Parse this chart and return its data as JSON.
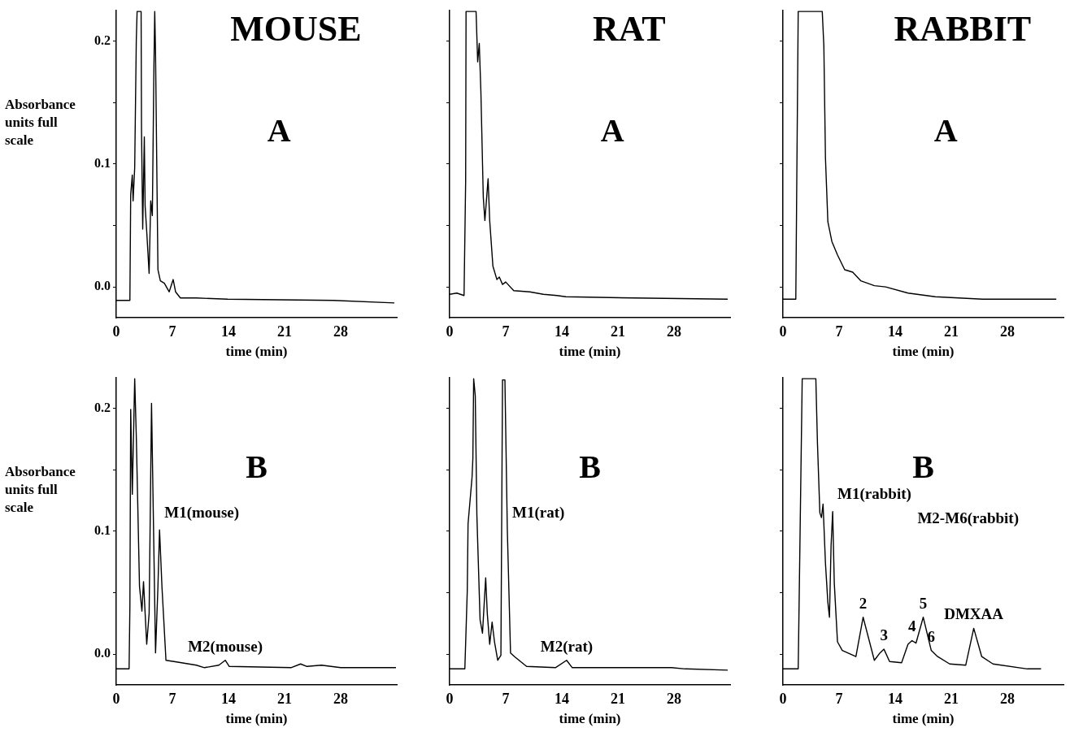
{
  "chart_data": [
    {
      "type": "line",
      "title": "MOUSE",
      "xlabel": "time (min)",
      "ylabel": "Absorbance units full scale",
      "xlim": [
        0,
        35
      ],
      "xticks": [
        0,
        7,
        14,
        21,
        28
      ],
      "ylim": [
        -0.025,
        0.225
      ],
      "yticks": [
        {
          "value": 0,
          "label": "0.0"
        },
        {
          "value": 0.05,
          "label": null
        },
        {
          "value": 0.1,
          "label": "0.1"
        },
        {
          "value": 0.15,
          "label": null
        },
        {
          "value": 0.2,
          "label": "0.2"
        }
      ],
      "annotations": [
        "A"
      ],
      "series": [
        {
          "color": "#000000",
          "x": [
            0,
            1.7,
            1.8,
            2.0,
            2.1,
            2.3,
            2.5,
            2.6,
            3.1,
            3.15,
            3.3,
            3.5,
            3.6,
            3.8,
            4.1,
            4.3,
            4.5,
            4.7,
            4.8,
            4.9,
            5.2,
            5.5,
            6.0,
            6.6,
            7.1,
            7.4,
            8.0,
            10.0,
            13.9,
            27.1,
            34.7
          ],
          "values": [
            -0.011,
            -0.011,
            0.075,
            0.091,
            0.07,
            0.097,
            0.201,
            0.224,
            0.224,
            0.128,
            0.047,
            0.122,
            0.066,
            0.045,
            0.011,
            0.07,
            0.058,
            0.18,
            0.224,
            0.19,
            0.014,
            0.005,
            0.003,
            -0.004,
            0.006,
            -0.004,
            -0.009,
            -0.009,
            -0.01,
            -0.011,
            -0.013
          ]
        }
      ]
    },
    {
      "type": "line",
      "title": "RAT",
      "xlabel": "time (min)",
      "xlim": [
        0,
        35
      ],
      "xticks": [
        0,
        7,
        14,
        21,
        28
      ],
      "ylim": [
        -0.025,
        0.225
      ],
      "yticks": [
        {
          "value": 0,
          "label": null
        },
        {
          "value": 0.05,
          "label": null
        },
        {
          "value": 0.1,
          "label": null
        },
        {
          "value": 0.15,
          "label": null
        },
        {
          "value": 0.2,
          "label": null
        }
      ],
      "tick_labels": "x",
      "annotations": [
        "A"
      ],
      "series": [
        {
          "color": "#000000",
          "x": [
            0,
            0.9,
            1.8,
            2.0,
            2.05,
            3.3,
            3.5,
            3.7,
            3.9,
            4.2,
            4.4,
            4.8,
            5.0,
            5.4,
            5.9,
            6.2,
            6.6,
            7.0,
            8.0,
            10.0,
            11.7,
            13.4,
            14.5,
            23.0,
            34.7
          ],
          "values": [
            -0.006,
            -0.005,
            -0.007,
            0.086,
            0.224,
            0.224,
            0.183,
            0.198,
            0.159,
            0.073,
            0.054,
            0.088,
            0.054,
            0.017,
            0.006,
            0.008,
            0.002,
            0.004,
            -0.003,
            -0.004,
            -0.006,
            -0.007,
            -0.008,
            -0.009,
            -0.01
          ]
        }
      ]
    },
    {
      "type": "line",
      "title": "RABBIT",
      "xlabel": "time (min)",
      "xlim": [
        0,
        35
      ],
      "xticks": [
        0,
        7,
        14,
        21,
        28
      ],
      "ylim": [
        -0.025,
        0.225
      ],
      "yticks": [
        {
          "value": 0,
          "label": null
        },
        {
          "value": 0.05,
          "label": null
        },
        {
          "value": 0.1,
          "label": null
        },
        {
          "value": 0.15,
          "label": null
        },
        {
          "value": 0.2,
          "label": null
        }
      ],
      "tick_labels": "x",
      "annotations": [
        "A"
      ],
      "series": [
        {
          "color": "#000000",
          "x": [
            0,
            1.6,
            1.9,
            4.9,
            5.1,
            5.3,
            5.6,
            6.1,
            6.8,
            7.7,
            8.7,
            9.7,
            11.4,
            12.8,
            15.6,
            19.0,
            24.9,
            34.1
          ],
          "values": [
            -0.01,
            -0.01,
            0.224,
            0.224,
            0.196,
            0.105,
            0.053,
            0.037,
            0.026,
            0.014,
            0.012,
            0.005,
            0.001,
            0,
            -0.005,
            -0.008,
            -0.01,
            -0.01
          ]
        }
      ]
    },
    {
      "type": "line",
      "xlabel": "time (min)",
      "ylabel": "Absorbance units full scale",
      "xlim": [
        0,
        35
      ],
      "xticks": [
        0,
        7,
        14,
        21,
        28
      ],
      "ylim": [
        -0.025,
        0.225
      ],
      "yticks": [
        {
          "value": 0,
          "label": "0.0"
        },
        {
          "value": 0.05,
          "label": null
        },
        {
          "value": 0.1,
          "label": "0.1"
        },
        {
          "value": 0.15,
          "label": null
        },
        {
          "value": 0.2,
          "label": "0.2"
        }
      ],
      "annotations": [
        "B",
        {
          "text": "M1(mouse)",
          "x": 5.4,
          "y": 0.101
        },
        {
          "text": "M2(mouse)",
          "x": 13.6,
          "y": -0.005
        }
      ],
      "series": [
        {
          "color": "#000000",
          "x": [
            0,
            1.6,
            1.7,
            1.8,
            2.0,
            2.3,
            2.5,
            2.9,
            3.2,
            3.4,
            3.8,
            4.1,
            4.4,
            4.9,
            5.2,
            5.4,
            5.7,
            6.2,
            7.2,
            10.0,
            11.0,
            12.8,
            13.6,
            14.1,
            21.8,
            23.0,
            23.8,
            25.6,
            28.0,
            34.9
          ],
          "values": [
            -0.012,
            -0.012,
            0.039,
            0.199,
            0.13,
            0.224,
            0.177,
            0.055,
            0.035,
            0.059,
            0.008,
            0.033,
            0.204,
            0.001,
            0.055,
            0.101,
            0.055,
            -0.005,
            -0.006,
            -0.009,
            -0.011,
            -0.009,
            -0.005,
            -0.01,
            -0.011,
            -0.008,
            -0.01,
            -0.009,
            -0.011,
            -0.011
          ]
        }
      ]
    },
    {
      "type": "line",
      "xlabel": "time (min)",
      "xlim": [
        0,
        35
      ],
      "xticks": [
        0,
        7,
        14,
        21,
        28
      ],
      "ylim": [
        -0.025,
        0.225
      ],
      "yticks": [
        {
          "value": 0,
          "label": null
        },
        {
          "value": 0.05,
          "label": null
        },
        {
          "value": 0.1,
          "label": null
        },
        {
          "value": 0.15,
          "label": null
        },
        {
          "value": 0.2,
          "label": null
        }
      ],
      "tick_labels": "x",
      "annotations": [
        "B",
        {
          "text": "M1(rat)",
          "x": 7.2,
          "y": 0.101
        },
        {
          "text": "M2(rat)",
          "x": 14.6,
          "y": -0.005
        }
      ],
      "series": [
        {
          "color": "#000000",
          "x": [
            0,
            1.9,
            2.2,
            2.3,
            2.8,
            2.9,
            3.0,
            3.2,
            3.4,
            3.8,
            4.1,
            4.5,
            4.7,
            5.0,
            5.3,
            5.6,
            6.0,
            6.4,
            6.6,
            6.9,
            7.2,
            7.6,
            8.1,
            9.6,
            13.2,
            14.6,
            15.3,
            20.8,
            27.7,
            29.4,
            34.7
          ],
          "values": [
            -0.012,
            -0.012,
            0.051,
            0.106,
            0.144,
            0.159,
            0.224,
            0.21,
            0.113,
            0.028,
            0.017,
            0.062,
            0.033,
            0.008,
            0.026,
            0.01,
            -0.005,
            -0.001,
            0.223,
            0.223,
            0.101,
            0.001,
            -0.002,
            -0.01,
            -0.011,
            -0.005,
            -0.011,
            -0.011,
            -0.011,
            -0.012,
            -0.013
          ]
        }
      ]
    },
    {
      "type": "line",
      "xlabel": "time (min)",
      "xlim": [
        0,
        35
      ],
      "xticks": [
        0,
        7,
        14,
        21,
        28
      ],
      "ylim": [
        -0.025,
        0.225
      ],
      "yticks": [
        {
          "value": 0,
          "label": null
        },
        {
          "value": 0.05,
          "label": null
        },
        {
          "value": 0.1,
          "label": null
        },
        {
          "value": 0.15,
          "label": null
        },
        {
          "value": 0.2,
          "label": null
        }
      ],
      "tick_labels": "x",
      "annotations": [
        "B",
        "M2-M6(rabbit)",
        {
          "text": "M1(rabbit)",
          "x": 6.2,
          "y": 0.116
        },
        {
          "text": "2",
          "x": 10.0,
          "y": 0.03
        },
        {
          "text": "3",
          "x": 12.6,
          "y": 0.004
        },
        {
          "text": "4",
          "x": 16.1,
          "y": 0.011
        },
        {
          "text": "5",
          "x": 17.5,
          "y": 0.03
        },
        {
          "text": "6",
          "x": 18.5,
          "y": 0.003
        },
        {
          "text": "DMXAA",
          "x": 23.8,
          "y": 0.021
        }
      ],
      "series": [
        {
          "color": "#000000",
          "x": [
            0,
            1.9,
            2.4,
            4.1,
            4.3,
            4.6,
            4.8,
            5.0,
            5.3,
            5.6,
            5.8,
            6.0,
            6.2,
            6.4,
            6.8,
            7.4,
            9.1,
            10.0,
            11.4,
            12.1,
            12.6,
            13.3,
            14.8,
            15.6,
            16.1,
            16.6,
            17.5,
            18.5,
            19.3,
            20.8,
            22.8,
            23.8,
            24.8,
            26.2,
            30.5,
            32.2
          ],
          "values": [
            -0.012,
            -0.012,
            0.224,
            0.224,
            0.172,
            0.115,
            0.111,
            0.122,
            0.074,
            0.042,
            0.03,
            0.088,
            0.116,
            0.058,
            0.01,
            0.003,
            -0.002,
            0.03,
            -0.005,
            0.001,
            0.004,
            -0.006,
            -0.007,
            0.008,
            0.011,
            0.009,
            0.03,
            0.003,
            -0.002,
            -0.008,
            -0.009,
            0.021,
            -0.002,
            -0.008,
            -0.012,
            -0.012
          ]
        }
      ]
    }
  ]
}
